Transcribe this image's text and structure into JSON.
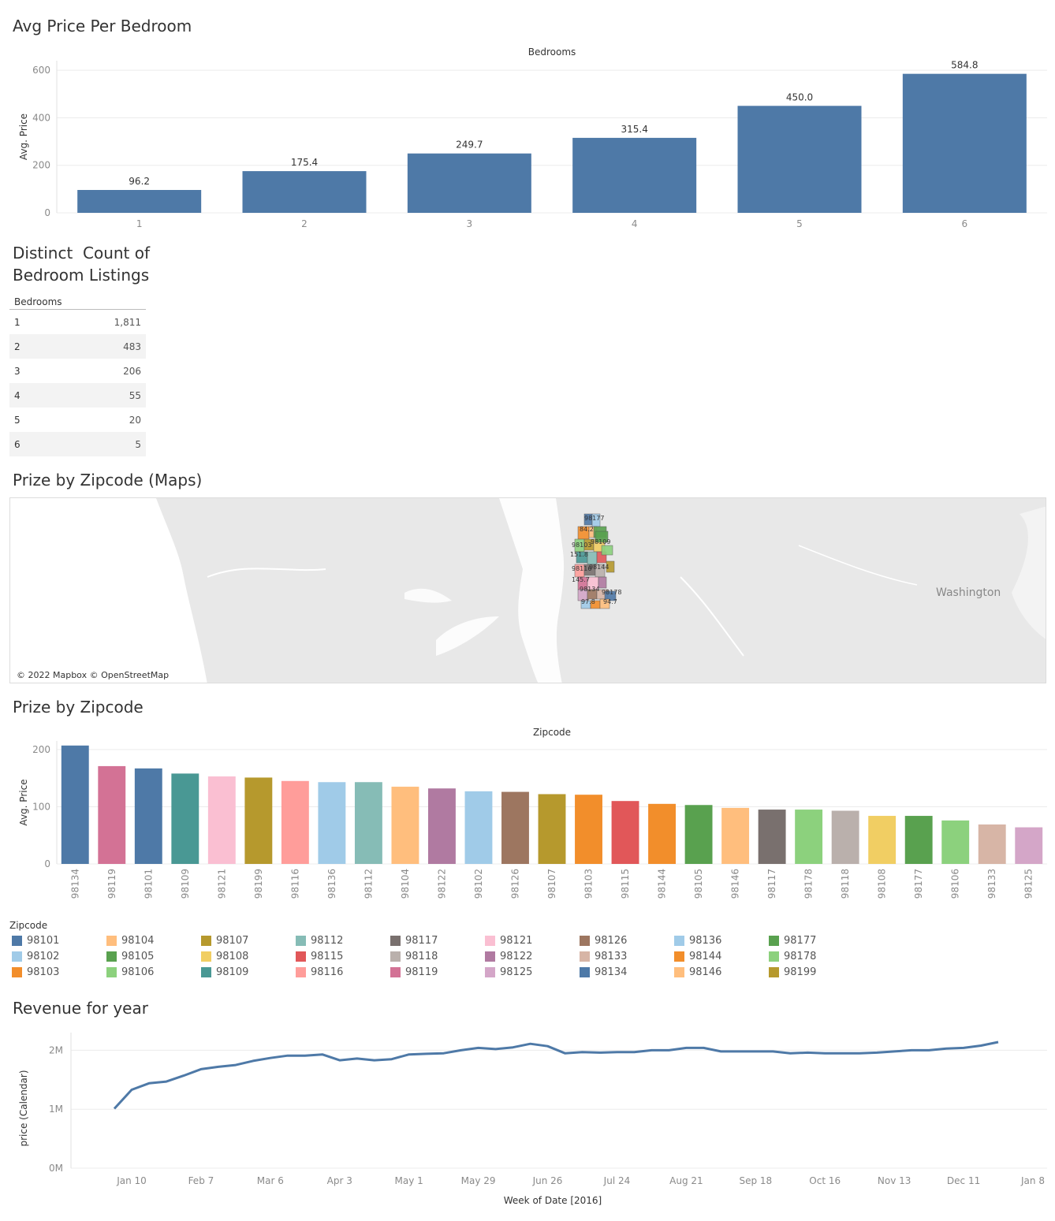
{
  "sections": {
    "bedroom_title": "Avg Price Per Bedroom",
    "count_title_line1": "Distinct  Count of",
    "count_title_line2": "Bedroom Listings",
    "map_title": "Prize by Zipcode (Maps)",
    "zip_title": "Prize by Zipcode",
    "revenue_title": "Revenue for year"
  },
  "count_table": {
    "header": "Bedrooms",
    "rows": [
      {
        "bedrooms": "1",
        "count": "1,811"
      },
      {
        "bedrooms": "2",
        "count": "483"
      },
      {
        "bedrooms": "3",
        "count": "206"
      },
      {
        "bedrooms": "4",
        "count": "55"
      },
      {
        "bedrooms": "5",
        "count": "20"
      },
      {
        "bedrooms": "6",
        "count": "5"
      }
    ]
  },
  "map": {
    "credit": "© 2022 Mapbox © OpenStreetMap",
    "region_label": "Washington",
    "background_color": "#e8e8e8",
    "water_color": "#ffffff",
    "zip_labels": [
      "98177",
      "84.2",
      "98103",
      "98109",
      "151.8",
      "98144",
      "98116",
      "98134",
      "98178",
      "145.7",
      "97.8",
      "94.7"
    ]
  },
  "chart_data": [
    {
      "id": "bedrooms",
      "type": "bar",
      "column_header": "Bedrooms",
      "ylabel": "Avg. Price",
      "categories": [
        "1",
        "2",
        "3",
        "4",
        "5",
        "6"
      ],
      "values": [
        96.2,
        175.4,
        249.7,
        315.4,
        450.0,
        584.8
      ],
      "data_labels": [
        "96.2",
        "175.4",
        "249.7",
        "315.4",
        "450.0",
        "584.8"
      ],
      "yticks": [
        "0",
        "200",
        "400",
        "600"
      ],
      "ylim": [
        0,
        640
      ],
      "grid": true,
      "color": "#4e79a7"
    },
    {
      "id": "zipcode",
      "type": "bar",
      "column_header": "Zipcode",
      "ylabel": "Avg. Price",
      "categories": [
        "98134",
        "98119",
        "98101",
        "98109",
        "98121",
        "98199",
        "98116",
        "98136",
        "98112",
        "98104",
        "98122",
        "98102",
        "98126",
        "98107",
        "98103",
        "98115",
        "98144",
        "98105",
        "98146",
        "98117",
        "98178",
        "98118",
        "98108",
        "98177",
        "98106",
        "98133",
        "98125"
      ],
      "values": [
        207,
        171,
        167,
        158,
        153,
        151,
        145,
        143,
        143,
        135,
        132,
        127,
        126,
        122,
        121,
        110,
        105,
        103,
        98,
        95,
        95,
        93,
        84,
        84,
        76,
        69,
        64
      ],
      "yticks": [
        "0",
        "100",
        "200"
      ],
      "ylim": [
        0,
        215
      ],
      "grid": true,
      "legend_title": "Zipcode",
      "legend": [
        {
          "zip": "98101",
          "color": "#4e79a7"
        },
        {
          "zip": "98102",
          "color": "#a0cbe8"
        },
        {
          "zip": "98103",
          "color": "#f28e2b"
        },
        {
          "zip": "98104",
          "color": "#ffbe7d"
        },
        {
          "zip": "98105",
          "color": "#59a14f"
        },
        {
          "zip": "98106",
          "color": "#8cd17d"
        },
        {
          "zip": "98107",
          "color": "#b6992d"
        },
        {
          "zip": "98108",
          "color": "#f1ce63"
        },
        {
          "zip": "98109",
          "color": "#499894"
        },
        {
          "zip": "98112",
          "color": "#86bcb6"
        },
        {
          "zip": "98115",
          "color": "#e15759"
        },
        {
          "zip": "98116",
          "color": "#ff9d9a"
        },
        {
          "zip": "98117",
          "color": "#79706e"
        },
        {
          "zip": "98118",
          "color": "#bab0ac"
        },
        {
          "zip": "98119",
          "color": "#d37295"
        },
        {
          "zip": "98121",
          "color": "#fabfd2"
        },
        {
          "zip": "98122",
          "color": "#b07aa1"
        },
        {
          "zip": "98125",
          "color": "#d4a6c8"
        },
        {
          "zip": "98126",
          "color": "#9d7660"
        },
        {
          "zip": "98133",
          "color": "#d7b5a6"
        },
        {
          "zip": "98134",
          "color": "#4e79a7"
        },
        {
          "zip": "98136",
          "color": "#a0cbe8"
        },
        {
          "zip": "98144",
          "color": "#f28e2b"
        },
        {
          "zip": "98146",
          "color": "#ffbe7d"
        },
        {
          "zip": "98177",
          "color": "#59a14f"
        },
        {
          "zip": "98178",
          "color": "#8cd17d"
        },
        {
          "zip": "98199",
          "color": "#b6992d"
        }
      ]
    },
    {
      "id": "revenue",
      "type": "line",
      "xlabel": "Week of Date [2016]",
      "ylabel": "price (Calendar)",
      "xticks": [
        "Jan 10",
        "Feb 7",
        "Mar 6",
        "Apr 3",
        "May 1",
        "May 29",
        "Jun 26",
        "Jul 24",
        "Aug 21",
        "Sep 18",
        "Oct 16",
        "Nov 13",
        "Dec 11",
        "Jan 8"
      ],
      "yticks": [
        "0M",
        "1M",
        "2M"
      ],
      "ylim": [
        0,
        2300000
      ],
      "x_start": "2016-01-03",
      "x_end": "2017-01-08",
      "weeks": [
        "2016-01-03",
        "2016-01-10",
        "2016-01-17",
        "2016-01-24",
        "2016-01-31",
        "2016-02-07",
        "2016-02-14",
        "2016-02-21",
        "2016-02-28",
        "2016-03-06",
        "2016-03-13",
        "2016-03-20",
        "2016-03-27",
        "2016-04-03",
        "2016-04-10",
        "2016-04-17",
        "2016-04-24",
        "2016-05-01",
        "2016-05-08",
        "2016-05-15",
        "2016-05-22",
        "2016-05-29",
        "2016-06-05",
        "2016-06-12",
        "2016-06-19",
        "2016-06-26",
        "2016-07-03",
        "2016-07-10",
        "2016-07-17",
        "2016-07-24",
        "2016-07-31",
        "2016-08-07",
        "2016-08-14",
        "2016-08-21",
        "2016-08-28",
        "2016-09-04",
        "2016-09-11",
        "2016-09-18",
        "2016-09-25",
        "2016-10-02",
        "2016-10-09",
        "2016-10-16",
        "2016-10-23",
        "2016-10-30",
        "2016-11-06",
        "2016-11-13",
        "2016-11-20",
        "2016-11-27",
        "2016-12-04",
        "2016-12-11",
        "2016-12-18",
        "2016-12-25"
      ],
      "values": [
        1010000,
        1330000,
        1440000,
        1470000,
        1570000,
        1680000,
        1720000,
        1750000,
        1820000,
        1870000,
        1910000,
        1910000,
        1930000,
        1830000,
        1860000,
        1830000,
        1850000,
        1930000,
        1940000,
        1950000,
        2000000,
        2040000,
        2020000,
        2050000,
        2110000,
        2070000,
        1950000,
        1970000,
        1960000,
        1970000,
        1970000,
        2000000,
        2000000,
        2040000,
        2040000,
        1980000,
        1980000,
        1980000,
        1980000,
        1950000,
        1960000,
        1950000,
        1950000,
        1950000,
        1960000,
        1980000,
        2000000,
        2000000,
        2030000,
        2040000,
        2080000,
        2140000
      ],
      "grid": true,
      "color": "#4e79a7"
    }
  ]
}
